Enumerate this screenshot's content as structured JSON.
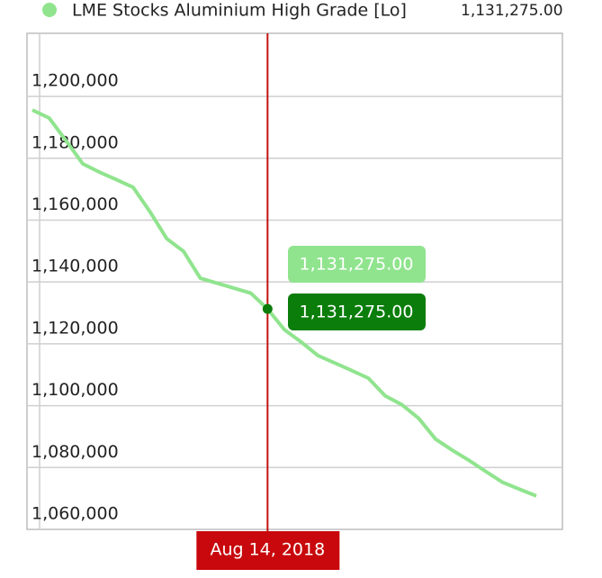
{
  "chart_data": {
    "type": "line",
    "categories": [
      null,
      null,
      null,
      null,
      null,
      null,
      null,
      null,
      null,
      null,
      null,
      null,
      null,
      null,
      "Aug 14, 2018",
      null,
      null,
      null,
      null,
      null,
      null,
      null,
      null,
      null,
      null,
      null,
      null,
      null,
      null,
      null,
      null
    ],
    "series": [
      {
        "name": "LME Stocks Aluminium High Grade [Lo]",
        "color": "#90e48e",
        "values": [
          1195600,
          1193000,
          1185700,
          1178200,
          1175500,
          1173100,
          1170600,
          1162700,
          1154000,
          1149900,
          1141200,
          1139600,
          1138000,
          1136400,
          1131275,
          1124600,
          1120600,
          1116200,
          1113800,
          1111400,
          1108900,
          1103200,
          1100300,
          1095900,
          1089200,
          1085600,
          1082300,
          1078700,
          1075200,
          1073000,
          1070800
        ],
        "value_labels": [
          null,
          null,
          null,
          null,
          null,
          null,
          null,
          null,
          null,
          null,
          null,
          null,
          null,
          null,
          "1,131,275.00",
          null,
          null,
          null,
          null,
          null,
          null,
          null,
          null,
          null,
          null,
          null,
          null,
          null,
          null,
          null,
          null
        ]
      }
    ],
    "ylim": [
      1060000,
      1220400
    ],
    "yticks": [
      {
        "value": 1060000,
        "label": "1,060,000"
      },
      {
        "value": 1080000,
        "label": "1,080,000"
      },
      {
        "value": 1100000,
        "label": "1,100,000"
      },
      {
        "value": 1120000,
        "label": "1,120,000"
      },
      {
        "value": 1140000,
        "label": "1,140,000"
      },
      {
        "value": 1160000,
        "label": "1,160,000"
      },
      {
        "value": 1180000,
        "label": "1,180,000"
      },
      {
        "value": 1200000,
        "label": "1,200,000"
      }
    ],
    "grid": true,
    "crosshair_index": 14
  }
}
